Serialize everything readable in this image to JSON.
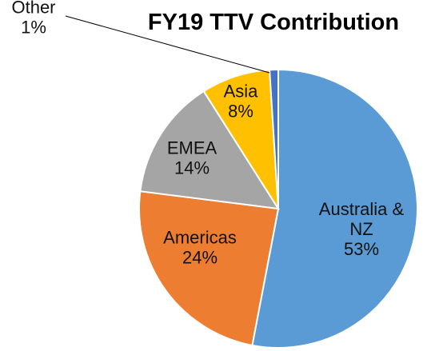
{
  "chart_data": {
    "type": "pie",
    "title": "FY19 TTV Contribution",
    "start_angle_deg": 0,
    "direction": "clockwise",
    "slices": [
      {
        "name": "Australia & NZ",
        "label_lines": [
          "Australia &",
          "NZ"
        ],
        "value": 53,
        "value_label": "53%",
        "color": "#5B9BD5"
      },
      {
        "name": "Americas",
        "label_lines": [
          "Americas"
        ],
        "value": 24,
        "value_label": "24%",
        "color": "#ED7D31"
      },
      {
        "name": "EMEA",
        "label_lines": [
          "EMEA"
        ],
        "value": 14,
        "value_label": "14%",
        "color": "#A5A5A5"
      },
      {
        "name": "Asia",
        "label_lines": [
          "Asia"
        ],
        "value": 8,
        "value_label": "8%",
        "color": "#FFC000"
      },
      {
        "name": "Other",
        "label_lines": [
          "Other"
        ],
        "value": 1,
        "value_label": "1%",
        "color": "#4472C4"
      }
    ]
  }
}
